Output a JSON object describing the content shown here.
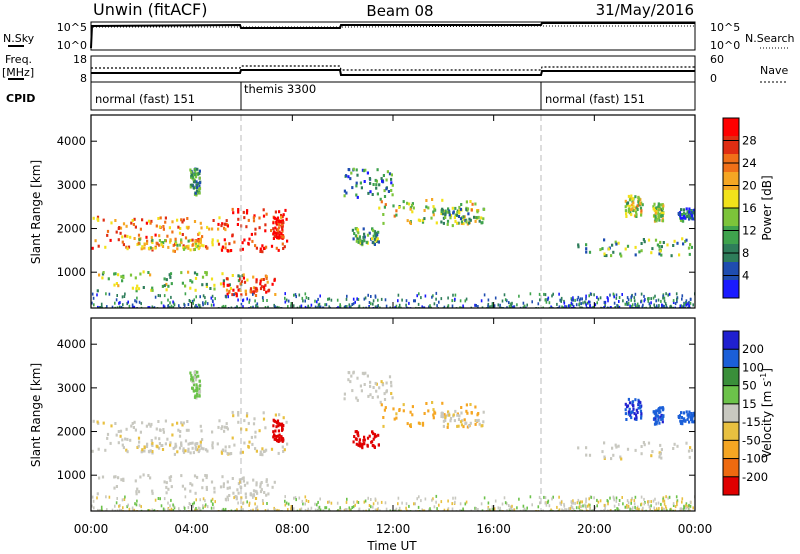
{
  "header": {
    "station": "Unwin (fitACF)",
    "beam": "Beam 08",
    "date": "31/May/2016"
  },
  "status_panel": {
    "left_labels": {
      "nsky": "N.Sky",
      "freq": "Freq.",
      "mhz": "[MHz]",
      "cpid": "CPID"
    },
    "right_labels": {
      "nsearch": "N.Search",
      "nave": "Nave"
    },
    "nsky_ticks": [
      "10^5",
      "10^0"
    ],
    "nsearch_ticks": [
      "10^5",
      "10^0"
    ],
    "freq_ticks": [
      "18",
      "8"
    ],
    "nave_ticks": [
      "60",
      "0"
    ],
    "cpid_segments": [
      {
        "label": "normal (fast) 151",
        "start_h": 0,
        "end_h": 6
      },
      {
        "label": "themis 3300",
        "start_h": 6,
        "end_h": 18
      },
      {
        "label": "normal (fast) 151",
        "start_h": 18,
        "end_h": 24
      }
    ]
  },
  "x_axis": {
    "label": "Time UT",
    "ticks": [
      "00:00",
      "04:00",
      "08:00",
      "12:00",
      "16:00",
      "20:00",
      "00:00"
    ]
  },
  "panels": {
    "power": {
      "ylabel": "Slant Range [km]",
      "yticks": [
        "1000",
        "2000",
        "3000",
        "4000"
      ],
      "colorbar_label": "Power [dB]",
      "colorbar_ticks": [
        "4",
        "8",
        "12",
        "16",
        "20",
        "24",
        "28"
      ]
    },
    "velocity": {
      "ylabel": "Slant Range [km]",
      "yticks": [
        "1000",
        "2000",
        "3000",
        "4000"
      ],
      "colorbar_label": "Velocity [m s",
      "colorbar_label_sup": "-1",
      "colorbar_label_end": "]",
      "colorbar_ticks": [
        "200",
        "100",
        "50",
        "15",
        "-15",
        "-50",
        "-100",
        "-200"
      ]
    }
  },
  "chart_data": {
    "type": "heatmap",
    "x_range_hours": [
      0,
      24
    ],
    "y_range_km": [
      180,
      4600
    ],
    "power_colors": [
      "#1a1aff",
      "#1f4db0",
      "#2e7d5a",
      "#3fa34d",
      "#7cc43a",
      "#f2e21a",
      "#f5a623",
      "#f07018",
      "#e02d12",
      "#ff0000"
    ],
    "velocity_colors": {
      "pos_high": "#2020d0",
      "pos_mid": "#1b5fd8",
      "pos_low": "#3a8f3a",
      "pos_min": "#6cc24a",
      "ground": "#c8c8c0",
      "neg_min": "#e8c040",
      "neg_low": "#f5a623",
      "neg_mid": "#ee6a10",
      "neg_high": "#e00000"
    },
    "regions": [
      {
        "t": [
          0.0,
          5.4
        ],
        "r": [
          1500,
          2300
        ],
        "power_db": 22,
        "velocity_ms": -5
      },
      {
        "t": [
          1.8,
          4.4
        ],
        "r": [
          1550,
          1800
        ],
        "power_db": 18,
        "velocity_ms": -10
      },
      {
        "t": [
          5.0,
          7.8
        ],
        "r": [
          1500,
          2500
        ],
        "power_db": 26,
        "velocity_ms": -8
      },
      {
        "t": [
          0.2,
          6.2
        ],
        "r": [
          600,
          1050
        ],
        "power_db": 14,
        "velocity_ms": 0
      },
      {
        "t": [
          5.2,
          7.3
        ],
        "r": [
          480,
          950
        ],
        "power_db": 26,
        "velocity_ms": -5
      },
      {
        "t": [
          7.2,
          7.6
        ],
        "r": [
          1800,
          2300
        ],
        "power_db": 27,
        "velocity_ms": -230
      },
      {
        "t": [
          3.9,
          4.3
        ],
        "r": [
          2800,
          3400
        ],
        "power_db": 10,
        "velocity_ms": 20
      },
      {
        "t": [
          10.0,
          12.0
        ],
        "r": [
          2700,
          3400
        ],
        "power_db": 10,
        "velocity_ms": -5
      },
      {
        "t": [
          10.3,
          11.4
        ],
        "r": [
          1650,
          2050
        ],
        "power_db": 12,
        "velocity_ms": -220
      },
      {
        "t": [
          11.4,
          15.4
        ],
        "r": [
          2100,
          2700
        ],
        "power_db": 16,
        "velocity_ms": -40
      },
      {
        "t": [
          13.8,
          15.6
        ],
        "r": [
          2150,
          2500
        ],
        "power_db": 12,
        "velocity_ms": -10
      },
      {
        "t": [
          19.3,
          24.0
        ],
        "r": [
          1400,
          1800
        ],
        "power_db": 12,
        "velocity_ms": -5
      },
      {
        "t": [
          21.2,
          21.9
        ],
        "r": [
          2300,
          2800
        ],
        "power_db": 16,
        "velocity_ms": 160
      },
      {
        "t": [
          22.3,
          22.7
        ],
        "r": [
          2200,
          2600
        ],
        "power_db": 16,
        "velocity_ms": 130
      },
      {
        "t": [
          23.3,
          24.0
        ],
        "r": [
          2200,
          2500
        ],
        "power_db": 8,
        "velocity_ms": 120
      }
    ]
  }
}
